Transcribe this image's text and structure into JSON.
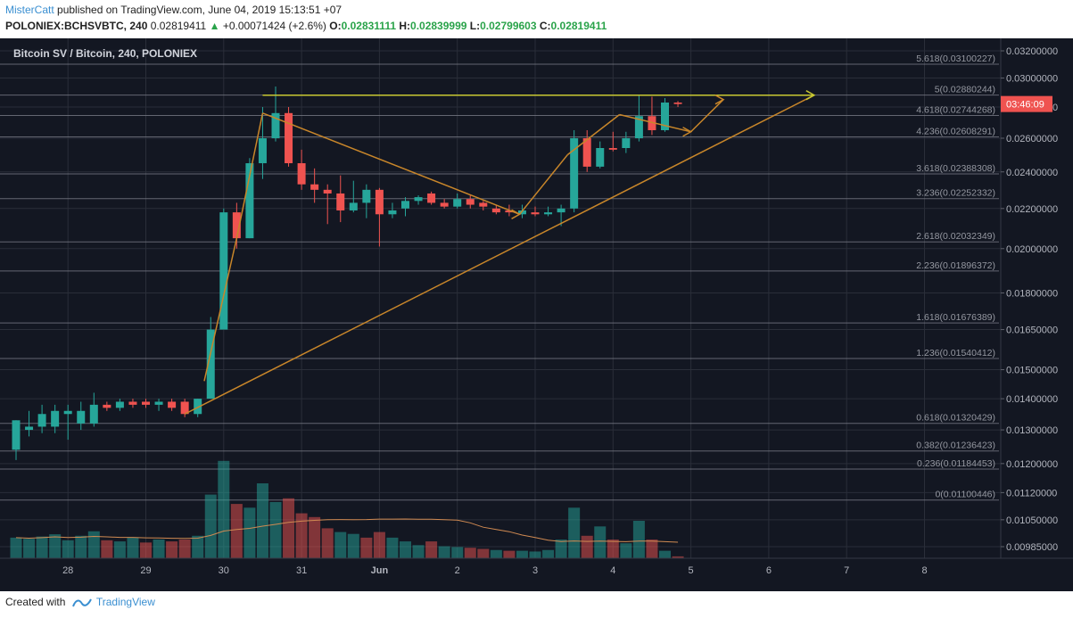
{
  "header": {
    "author": "MisterCatt",
    "published": "published on TradingView.com, June 04, 2019 15:13:51 +07",
    "symbol": "POLONIEX:BCHSVBTC, 240",
    "last": "0.02819411",
    "change_arrow": "▲",
    "change": "+0.00071424 (+2.6%)",
    "o_label": "O:",
    "o": "0.02831111",
    "h_label": "H:",
    "h": "0.02839999",
    "l_label": "L:",
    "l": "0.02799603",
    "c_label": "C:",
    "c": "0.02819411"
  },
  "footer": {
    "created_with": "Created with",
    "brand": "TradingView"
  },
  "colors": {
    "background": "#131722",
    "bull": "#26a69a",
    "bear": "#ef5350",
    "grid": "#2a2e39",
    "fib": "#787b86",
    "trend": "#c8862a",
    "resistance": "#c8c832",
    "price_tag": "#ef5350",
    "volume_ma": "#d08a52"
  },
  "chart_data": {
    "type": "candlestick",
    "title": "Bitcoin SV / Bitcoin, 240, POLONIEX",
    "price_tag": "03:46:09",
    "y_ticks": [
      0.032,
      0.03,
      0.028,
      0.026,
      0.024,
      0.022,
      0.02,
      0.018,
      0.0165,
      0.015,
      0.014,
      0.013,
      0.012,
      0.0112,
      0.0105,
      0.00985
    ],
    "y_tick_labels": [
      "0.03200000",
      "0.03000000",
      "0.02800000",
      "0.02600000",
      "0.02400000",
      "0.02200000",
      "0.02000000",
      "0.01800000",
      "0.01650000",
      "0.01500000",
      "0.01400000",
      "0.01300000",
      "0.01200000",
      "0.01120000",
      "0.01050000",
      "0.00985000"
    ],
    "x_ticks": [
      {
        "label": "28",
        "i": 4
      },
      {
        "label": "29",
        "i": 10
      },
      {
        "label": "30",
        "i": 16
      },
      {
        "label": "31",
        "i": 22
      },
      {
        "label": "Jun",
        "i": 28
      },
      {
        "label": "2",
        "i": 34
      },
      {
        "label": "3",
        "i": 40
      },
      {
        "label": "4",
        "i": 46
      },
      {
        "label": "5",
        "i": 52
      },
      {
        "label": "6",
        "i": 58
      },
      {
        "label": "7",
        "i": 64
      },
      {
        "label": "8",
        "i": 70
      }
    ],
    "fib_levels": [
      {
        "label": "5.618",
        "value": 0.03100227
      },
      {
        "label": "5",
        "value": 0.02880244
      },
      {
        "label": "4.618",
        "value": 0.02744268
      },
      {
        "label": "4.236",
        "value": 0.02608291
      },
      {
        "label": "3.618",
        "value": 0.02388308
      },
      {
        "label": "3.236",
        "value": 0.02252332
      },
      {
        "label": "2.618",
        "value": 0.02032349
      },
      {
        "label": "2.236",
        "value": 0.01896372
      },
      {
        "label": "1.618",
        "value": 0.01676389
      },
      {
        "label": "1.236",
        "value": 0.01540412
      },
      {
        "label": "0.618",
        "value": 0.01320429
      },
      {
        "label": "0.382",
        "value": 0.01236423
      },
      {
        "label": "0.236",
        "value": 0.01184453
      },
      {
        "label": "0",
        "value": 0.01100446
      }
    ],
    "candles": [
      {
        "o": 0.0124,
        "h": 0.0133,
        "l": 0.0121,
        "c": 0.0133
      },
      {
        "o": 0.013,
        "h": 0.0136,
        "l": 0.0128,
        "c": 0.0131
      },
      {
        "o": 0.0131,
        "h": 0.0138,
        "l": 0.0129,
        "c": 0.0135
      },
      {
        "o": 0.0131,
        "h": 0.0138,
        "l": 0.0129,
        "c": 0.0136
      },
      {
        "o": 0.0135,
        "h": 0.0138,
        "l": 0.0127,
        "c": 0.0136
      },
      {
        "o": 0.0132,
        "h": 0.0139,
        "l": 0.013,
        "c": 0.0136
      },
      {
        "o": 0.0132,
        "h": 0.0142,
        "l": 0.0131,
        "c": 0.0138
      },
      {
        "o": 0.0138,
        "h": 0.0139,
        "l": 0.0136,
        "c": 0.0137
      },
      {
        "o": 0.0137,
        "h": 0.014,
        "l": 0.0136,
        "c": 0.0139
      },
      {
        "o": 0.0139,
        "h": 0.014,
        "l": 0.0137,
        "c": 0.0138
      },
      {
        "o": 0.0139,
        "h": 0.014,
        "l": 0.0137,
        "c": 0.0138
      },
      {
        "o": 0.0138,
        "h": 0.014,
        "l": 0.0136,
        "c": 0.0139
      },
      {
        "o": 0.0139,
        "h": 0.014,
        "l": 0.0136,
        "c": 0.0137
      },
      {
        "o": 0.0139,
        "h": 0.014,
        "l": 0.0134,
        "c": 0.0135
      },
      {
        "o": 0.0135,
        "h": 0.014,
        "l": 0.0134,
        "c": 0.014
      },
      {
        "o": 0.014,
        "h": 0.017,
        "l": 0.014,
        "c": 0.0165
      },
      {
        "o": 0.0165,
        "h": 0.022,
        "l": 0.0165,
        "c": 0.0218
      },
      {
        "o": 0.0218,
        "h": 0.0223,
        "l": 0.02,
        "c": 0.0205
      },
      {
        "o": 0.0205,
        "h": 0.0248,
        "l": 0.0205,
        "c": 0.0245
      },
      {
        "o": 0.0245,
        "h": 0.028,
        "l": 0.0236,
        "c": 0.026
      },
      {
        "o": 0.026,
        "h": 0.0294,
        "l": 0.0258,
        "c": 0.0276
      },
      {
        "o": 0.0276,
        "h": 0.028,
        "l": 0.0243,
        "c": 0.0245
      },
      {
        "o": 0.0245,
        "h": 0.0253,
        "l": 0.023,
        "c": 0.0233
      },
      {
        "o": 0.0233,
        "h": 0.0242,
        "l": 0.0223,
        "c": 0.023
      },
      {
        "o": 0.023,
        "h": 0.0233,
        "l": 0.0212,
        "c": 0.0228
      },
      {
        "o": 0.0228,
        "h": 0.0238,
        "l": 0.0213,
        "c": 0.0219
      },
      {
        "o": 0.0219,
        "h": 0.0235,
        "l": 0.0218,
        "c": 0.0223
      },
      {
        "o": 0.0223,
        "h": 0.0233,
        "l": 0.0215,
        "c": 0.023
      },
      {
        "o": 0.023,
        "h": 0.0231,
        "l": 0.0201,
        "c": 0.0217
      },
      {
        "o": 0.0217,
        "h": 0.0223,
        "l": 0.0215,
        "c": 0.0219
      },
      {
        "o": 0.022,
        "h": 0.0226,
        "l": 0.0216,
        "c": 0.0224
      },
      {
        "o": 0.0224,
        "h": 0.0227,
        "l": 0.0222,
        "c": 0.0226
      },
      {
        "o": 0.0228,
        "h": 0.0229,
        "l": 0.0222,
        "c": 0.0223
      },
      {
        "o": 0.0223,
        "h": 0.0225,
        "l": 0.022,
        "c": 0.0221
      },
      {
        "o": 0.0221,
        "h": 0.0228,
        "l": 0.022,
        "c": 0.0225
      },
      {
        "o": 0.0225,
        "h": 0.0227,
        "l": 0.022,
        "c": 0.0222
      },
      {
        "o": 0.0223,
        "h": 0.0224,
        "l": 0.0219,
        "c": 0.0221
      },
      {
        "o": 0.022,
        "h": 0.0222,
        "l": 0.0217,
        "c": 0.0218
      },
      {
        "o": 0.0219,
        "h": 0.0222,
        "l": 0.0216,
        "c": 0.0218
      },
      {
        "o": 0.0217,
        "h": 0.0222,
        "l": 0.0215,
        "c": 0.0219
      },
      {
        "o": 0.0218,
        "h": 0.0221,
        "l": 0.0216,
        "c": 0.0217
      },
      {
        "o": 0.0217,
        "h": 0.0221,
        "l": 0.0216,
        "c": 0.0218
      },
      {
        "o": 0.0218,
        "h": 0.0222,
        "l": 0.0211,
        "c": 0.022
      },
      {
        "o": 0.022,
        "h": 0.0265,
        "l": 0.0218,
        "c": 0.026
      },
      {
        "o": 0.026,
        "h": 0.0265,
        "l": 0.024,
        "c": 0.0243
      },
      {
        "o": 0.0243,
        "h": 0.0258,
        "l": 0.0242,
        "c": 0.0254
      },
      {
        "o": 0.0254,
        "h": 0.0264,
        "l": 0.0252,
        "c": 0.0253
      },
      {
        "o": 0.0254,
        "h": 0.0264,
        "l": 0.0251,
        "c": 0.026
      },
      {
        "o": 0.026,
        "h": 0.0288,
        "l": 0.0258,
        "c": 0.0274
      },
      {
        "o": 0.0274,
        "h": 0.0287,
        "l": 0.0262,
        "c": 0.0265
      },
      {
        "o": 0.0265,
        "h": 0.0286,
        "l": 0.0264,
        "c": 0.0283
      },
      {
        "o": 0.0283,
        "h": 0.0284,
        "l": 0.028,
        "c": 0.0282
      }
    ],
    "volume": [
      {
        "v": 55,
        "up": true
      },
      {
        "v": 52,
        "up": true
      },
      {
        "v": 58,
        "up": true
      },
      {
        "v": 64,
        "up": true
      },
      {
        "v": 48,
        "up": true
      },
      {
        "v": 60,
        "up": true
      },
      {
        "v": 72,
        "up": true
      },
      {
        "v": 48,
        "up": false
      },
      {
        "v": 45,
        "up": true
      },
      {
        "v": 55,
        "up": true
      },
      {
        "v": 42,
        "up": false
      },
      {
        "v": 50,
        "up": true
      },
      {
        "v": 45,
        "up": false
      },
      {
        "v": 50,
        "up": false
      },
      {
        "v": 60,
        "up": true
      },
      {
        "v": 170,
        "up": true
      },
      {
        "v": 260,
        "up": true
      },
      {
        "v": 145,
        "up": false
      },
      {
        "v": 135,
        "up": true
      },
      {
        "v": 200,
        "up": true
      },
      {
        "v": 150,
        "up": true
      },
      {
        "v": 160,
        "up": false
      },
      {
        "v": 120,
        "up": false
      },
      {
        "v": 110,
        "up": false
      },
      {
        "v": 80,
        "up": false
      },
      {
        "v": 70,
        "up": true
      },
      {
        "v": 65,
        "up": true
      },
      {
        "v": 55,
        "up": false
      },
      {
        "v": 70,
        "up": false
      },
      {
        "v": 55,
        "up": true
      },
      {
        "v": 45,
        "up": true
      },
      {
        "v": 35,
        "up": true
      },
      {
        "v": 45,
        "up": false
      },
      {
        "v": 32,
        "up": true
      },
      {
        "v": 30,
        "up": true
      },
      {
        "v": 28,
        "up": false
      },
      {
        "v": 25,
        "up": false
      },
      {
        "v": 22,
        "up": true
      },
      {
        "v": 20,
        "up": false
      },
      {
        "v": 20,
        "up": true
      },
      {
        "v": 18,
        "up": true
      },
      {
        "v": 22,
        "up": true
      },
      {
        "v": 50,
        "up": true
      },
      {
        "v": 135,
        "up": true
      },
      {
        "v": 60,
        "up": false
      },
      {
        "v": 85,
        "up": true
      },
      {
        "v": 50,
        "up": false
      },
      {
        "v": 40,
        "up": true
      },
      {
        "v": 100,
        "up": true
      },
      {
        "v": 50,
        "up": false
      },
      {
        "v": 20,
        "up": true
      },
      {
        "v": 5,
        "up": false
      }
    ]
  }
}
